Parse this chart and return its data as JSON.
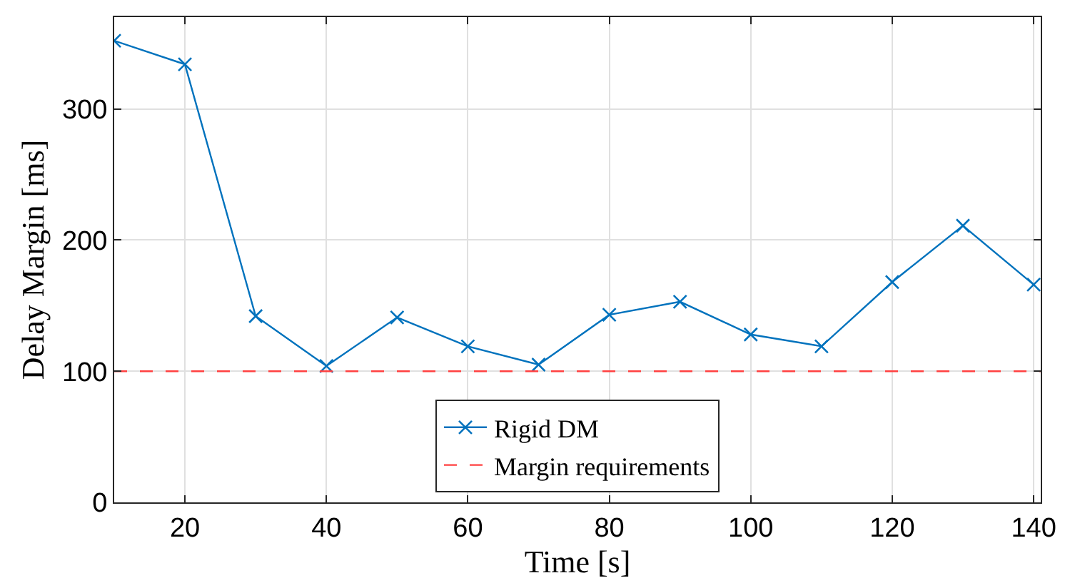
{
  "chart_data": {
    "type": "line",
    "xlabel": "Time [s]",
    "ylabel": "Delay Margin [ms]",
    "x": [
      10,
      20,
      30,
      40,
      50,
      60,
      70,
      80,
      90,
      100,
      110,
      120,
      130,
      140
    ],
    "series": [
      {
        "name": "Rigid DM",
        "color": "#0072bd",
        "values": [
          352,
          334,
          142,
          104,
          141,
          119,
          105,
          143,
          153,
          128,
          119,
          168,
          211,
          166
        ]
      }
    ],
    "ref_lines": [
      {
        "axis": "y",
        "value": 100,
        "label": "Margin requirements",
        "color": "#ff4040",
        "line_style": "dashed"
      }
    ],
    "xlim": [
      10,
      141
    ],
    "ylim": [
      0,
      370
    ],
    "xticks": [
      20,
      40,
      60,
      80,
      100,
      120,
      140
    ],
    "yticks": [
      0,
      100,
      200,
      300
    ],
    "grid": true,
    "legend": "bottom",
    "marker": "cross",
    "line_style": "solid"
  }
}
